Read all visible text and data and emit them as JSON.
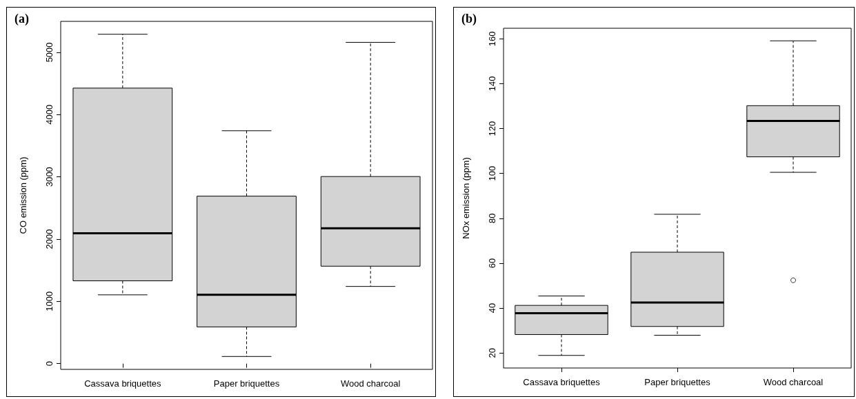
{
  "chart_data": [
    {
      "type": "box",
      "title": "(a)",
      "ylabel": "CO emission (ppm)",
      "categories": [
        "Cassava briquettes",
        "Paper briquettes",
        "Wood charcoal"
      ],
      "color": "#d3d3d3",
      "boxes": [
        {
          "low": 1105,
          "q1": 1330,
          "median": 2095,
          "q3": 4425,
          "high": 5290
        },
        {
          "low": 115,
          "q1": 590,
          "median": 1105,
          "q3": 2690,
          "high": 3740
        },
        {
          "low": 1240,
          "q1": 1565,
          "median": 2175,
          "q3": 3005,
          "high": 5160
        }
      ],
      "ylim": [
        -92,
        5497
      ],
      "yticks": [
        0,
        1000,
        2000,
        3000,
        4000,
        5000
      ],
      "grid": false
    },
    {
      "type": "box",
      "title": "(b)",
      "ylabel": "NOx emission (ppm)",
      "categories": [
        "Cassava briquettes",
        "Paper briquettes",
        "Wood charcoal"
      ],
      "color": "#d3d3d3",
      "boxes": [
        {
          "low": 18.9,
          "q1": 28.2,
          "median": 37.7,
          "q3": 41.2,
          "high": 45.4
        },
        {
          "low": 27.9,
          "q1": 31.8,
          "median": 42.5,
          "q3": 64.9,
          "high": 81.8
        },
        {
          "low": 100.5,
          "q1": 107.4,
          "median": 123.4,
          "q3": 130.2,
          "high": 159.1,
          "outliers": [
            52.4
          ]
        }
      ],
      "ylim": [
        13.3,
        164.7
      ],
      "yticks": [
        20,
        40,
        60,
        80,
        100,
        120,
        140,
        160
      ],
      "grid": false
    }
  ]
}
